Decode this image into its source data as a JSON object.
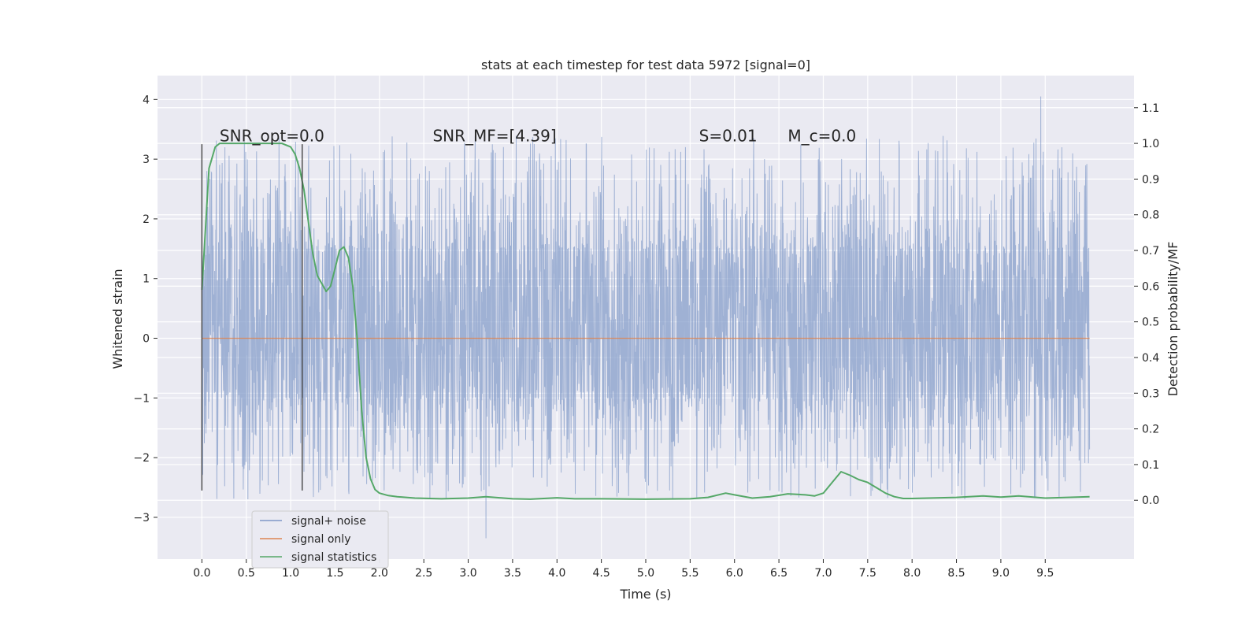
{
  "chart_data": {
    "type": "line",
    "title": "stats at each timestep for test data 5972 [signal=0]",
    "xlabel": "Time (s)",
    "ylabel": "Whitened strain",
    "y2label": "Detection probability/MF",
    "xlim": [
      -0.5,
      10.5
    ],
    "ylim": [
      -3.7,
      4.4
    ],
    "y2lim": [
      -0.165,
      1.19
    ],
    "xticks": [
      "0.0",
      "0.5",
      "1.0",
      "1.5",
      "2.0",
      "2.5",
      "3.0",
      "3.5",
      "4.0",
      "4.5",
      "5.0",
      "5.5",
      "6.0",
      "6.5",
      "7.0",
      "7.5",
      "8.0",
      "8.5",
      "9.0",
      "9.5"
    ],
    "yticks": [
      4,
      3,
      2,
      1,
      0,
      -1,
      -2,
      -3
    ],
    "ytick_labels": [
      "4",
      "3",
      "2",
      "1",
      "0",
      "−1",
      "−2",
      "−3"
    ],
    "y2ticks": [
      1.1,
      1.0,
      0.9,
      0.8,
      0.7,
      0.6,
      0.5,
      0.4,
      0.3,
      0.2,
      0.1,
      0.0
    ],
    "y2tick_labels": [
      "1.1",
      "1.0",
      "0.9",
      "0.8",
      "0.7",
      "0.6",
      "0.5",
      "0.4",
      "0.3",
      "0.2",
      "0.1",
      "0.0"
    ],
    "grid": true,
    "legend_position": "lower-left",
    "annotations": [
      {
        "label": "SNR_opt=0.0",
        "x": 0.2,
        "y": 3.3
      },
      {
        "label": "SNR_MF=[4.39]",
        "x": 2.6,
        "y": 3.3
      },
      {
        "label": "S=0.01",
        "x": 5.6,
        "y": 3.3
      },
      {
        "label": "M_c=0.0",
        "x": 6.6,
        "y": 3.3
      }
    ],
    "vlines": [
      {
        "x": 0.0,
        "ymin": -2.55,
        "ymax": 3.25
      },
      {
        "x": 1.13,
        "ymin": -2.55,
        "ymax": 3.25
      }
    ],
    "series": [
      {
        "name": "signal+ noise",
        "color": "#7f98c8",
        "axis": "left",
        "x_range": [
          0.0,
          10.0
        ],
        "envelope": {
          "inner_min": -1.0,
          "inner_max": 1.5,
          "peak_max": 4.05,
          "peak_max_at": 9.45,
          "peak_min": -3.35,
          "peak_min_at": 3.2
        }
      },
      {
        "name": "signal only",
        "color": "#dd8452",
        "axis": "left",
        "x": [
          0.0,
          10.0
        ],
        "values": [
          0.0,
          0.0
        ]
      },
      {
        "name": "signal statistics",
        "color": "#55a868",
        "axis": "right",
        "x": [
          0.0,
          0.08,
          0.15,
          0.2,
          0.3,
          0.5,
          0.7,
          0.9,
          1.0,
          1.05,
          1.1,
          1.15,
          1.2,
          1.25,
          1.3,
          1.4,
          1.45,
          1.5,
          1.55,
          1.6,
          1.65,
          1.7,
          1.75,
          1.8,
          1.85,
          1.9,
          1.95,
          2.0,
          2.1,
          2.2,
          2.4,
          2.7,
          3.0,
          3.2,
          3.5,
          3.7,
          4.0,
          4.2,
          4.5,
          5.0,
          5.5,
          5.7,
          5.9,
          6.0,
          6.2,
          6.4,
          6.6,
          6.8,
          6.9,
          7.0,
          7.1,
          7.2,
          7.3,
          7.4,
          7.5,
          7.6,
          7.7,
          7.8,
          7.9,
          8.0,
          8.5,
          8.8,
          9.0,
          9.2,
          9.5,
          10.0
        ],
        "values": [
          0.59,
          0.93,
          0.99,
          1.0,
          1.0,
          1.0,
          1.0,
          1.0,
          0.99,
          0.97,
          0.93,
          0.87,
          0.78,
          0.69,
          0.63,
          0.585,
          0.6,
          0.65,
          0.7,
          0.71,
          0.68,
          0.6,
          0.45,
          0.25,
          0.12,
          0.06,
          0.03,
          0.02,
          0.013,
          0.01,
          0.006,
          0.004,
          0.006,
          0.01,
          0.004,
          0.003,
          0.007,
          0.004,
          0.004,
          0.003,
          0.004,
          0.008,
          0.02,
          0.015,
          0.006,
          0.01,
          0.018,
          0.015,
          0.012,
          0.02,
          0.05,
          0.08,
          0.07,
          0.058,
          0.05,
          0.035,
          0.02,
          0.01,
          0.005,
          0.005,
          0.008,
          0.012,
          0.009,
          0.012,
          0.006,
          0.01
        ]
      }
    ]
  }
}
